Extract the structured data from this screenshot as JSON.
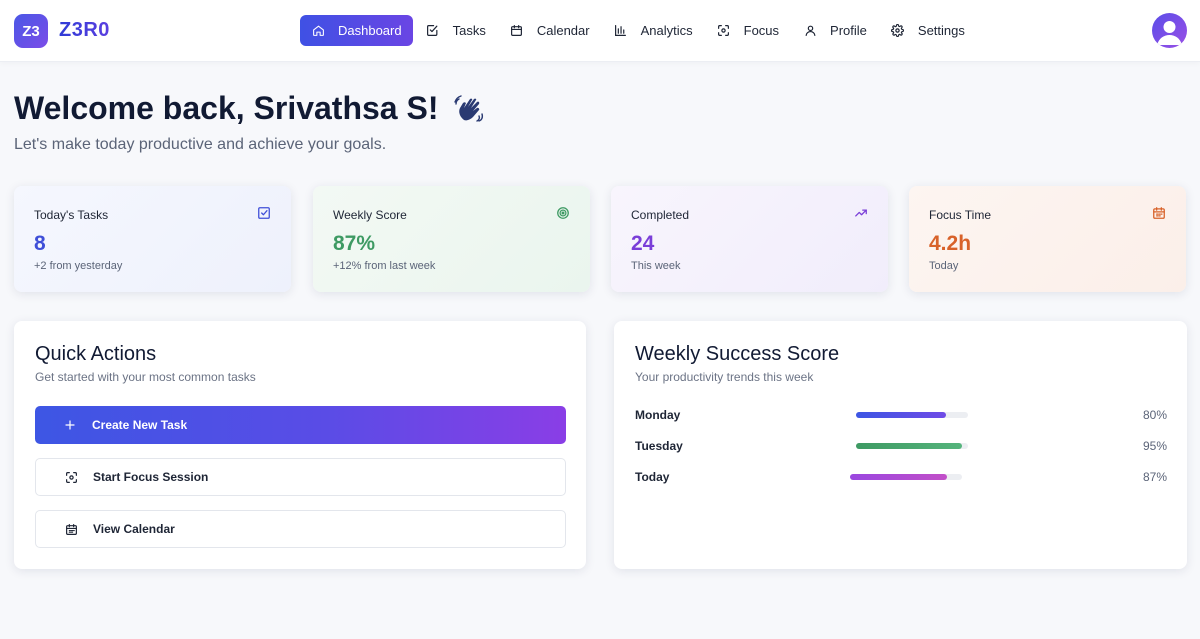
{
  "app": {
    "logo_mark": "Z3",
    "logo_text": "Z3R0"
  },
  "nav": {
    "items": [
      {
        "label": "Dashboard",
        "icon": "home-icon",
        "active": true
      },
      {
        "label": "Tasks",
        "icon": "checkbox-icon"
      },
      {
        "label": "Calendar",
        "icon": "calendar-icon"
      },
      {
        "label": "Analytics",
        "icon": "bar-chart-icon"
      },
      {
        "label": "Focus",
        "icon": "focus-icon"
      },
      {
        "label": "Profile",
        "icon": "user-icon"
      },
      {
        "label": "Settings",
        "icon": "gear-icon"
      }
    ]
  },
  "welcome": {
    "title": "Welcome back, Srivathsa S!",
    "subtitle": "Let's make today productive and achieve your goals."
  },
  "stats": [
    {
      "label": "Today's Tasks",
      "value": "8",
      "note": "+2 from yesterday",
      "icon": "checkbox-icon",
      "color": "#3f4fd8"
    },
    {
      "label": "Weekly Score",
      "value": "87%",
      "note": "+12% from last week",
      "icon": "target-icon",
      "color": "#3e9a63"
    },
    {
      "label": "Completed",
      "value": "24",
      "note": "This week",
      "icon": "trending-up-icon",
      "color": "#7a3ed8"
    },
    {
      "label": "Focus Time",
      "value": "4.2h",
      "note": "Today",
      "icon": "calendar-icon",
      "color": "#d8622a"
    }
  ],
  "quick_actions": {
    "title": "Quick Actions",
    "subtitle": "Get started with your most common tasks",
    "buttons": [
      {
        "label": "Create New Task",
        "icon": "plus-icon"
      },
      {
        "label": "Start Focus Session",
        "icon": "focus-icon"
      },
      {
        "label": "View Calendar",
        "icon": "calendar-icon"
      }
    ]
  },
  "weekly_success": {
    "title": "Weekly Success Score",
    "subtitle": "Your productivity trends this week",
    "rows": [
      {
        "day": "Monday",
        "percent": 80,
        "label": "80%",
        "color_from": "#3d56e4",
        "color_to": "#6f4be6"
      },
      {
        "day": "Tuesday",
        "percent": 95,
        "label": "95%",
        "color_from": "#3e9a63",
        "color_to": "#55b47c"
      },
      {
        "day": "Today",
        "percent": 87,
        "label": "87%",
        "color_from": "#9a47e0",
        "color_to": "#c24fc8"
      }
    ]
  }
}
